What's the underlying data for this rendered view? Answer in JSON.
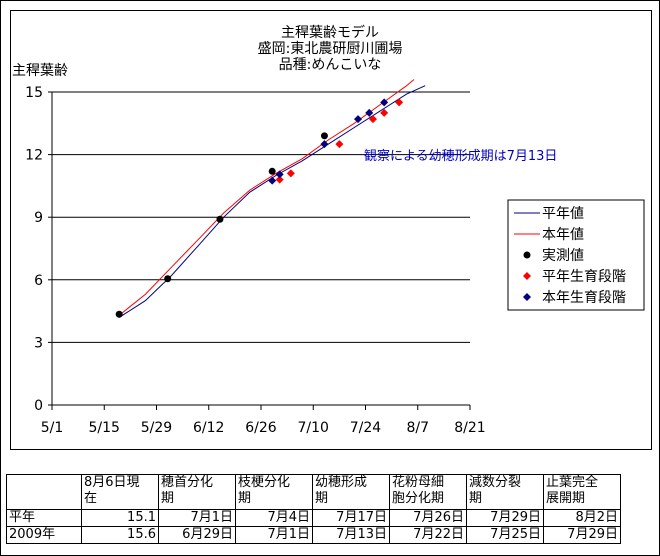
{
  "chart_data": {
    "type": "line",
    "title": [
      "主稈葉齢モデル",
      "盛岡:東北農研厨川圃場",
      "品種:めんこいな"
    ],
    "ylabel": "主稈葉齢",
    "xlabel": "",
    "ylim": [
      0,
      15
    ],
    "yticks": [
      0,
      3,
      6,
      9,
      12,
      15
    ],
    "xlim": [
      "5/1",
      "8/21"
    ],
    "xticks": [
      "5/1",
      "5/15",
      "5/29",
      "6/12",
      "6/26",
      "7/10",
      "7/24",
      "8/7",
      "8/21"
    ],
    "grid": "horizontal",
    "legend_position": "right",
    "annotation": "観察による幼穂形成期は7月13日",
    "series": [
      {
        "name": "平年値",
        "kind": "line",
        "color": "#000080",
        "x": [
          "5/19",
          "5/26",
          "6/2",
          "6/9",
          "6/16",
          "6/23",
          "6/30",
          "7/7",
          "7/14",
          "7/21",
          "7/28",
          "8/4",
          "8/9"
        ],
        "values": [
          4.2,
          5.0,
          6.2,
          7.6,
          9.0,
          10.2,
          11.0,
          11.7,
          12.5,
          13.3,
          14.1,
          14.9,
          15.3
        ]
      },
      {
        "name": "本年値",
        "kind": "line",
        "color": "#ff0000",
        "x": [
          "5/19",
          "5/26",
          "6/2",
          "6/9",
          "6/16",
          "6/23",
          "6/30",
          "7/7",
          "7/14",
          "7/21",
          "7/28",
          "8/4",
          "8/6"
        ],
        "values": [
          4.3,
          5.3,
          6.6,
          7.9,
          9.2,
          10.3,
          11.1,
          11.8,
          12.7,
          13.5,
          14.4,
          15.3,
          15.6
        ]
      },
      {
        "name": "実測値",
        "kind": "point",
        "color": "#000000",
        "marker": "circle",
        "x": [
          "5/19",
          "6/1",
          "6/15",
          "6/29",
          "7/13"
        ],
        "values": [
          4.35,
          6.05,
          8.9,
          11.2,
          12.9
        ]
      },
      {
        "name": "平年生育段階",
        "kind": "point",
        "color": "#ff0000",
        "marker": "diamond",
        "x": [
          "7/1",
          "7/4",
          "7/17",
          "7/26",
          "7/29",
          "8/2"
        ],
        "values": [
          10.8,
          11.1,
          12.5,
          13.7,
          14.0,
          14.5
        ]
      },
      {
        "name": "本年生育段階",
        "kind": "point",
        "color": "#000080",
        "marker": "diamond",
        "x": [
          "6/29",
          "7/1",
          "7/13",
          "7/22",
          "7/25",
          "7/29"
        ],
        "values": [
          10.75,
          11.05,
          12.5,
          13.7,
          14.0,
          14.5
        ]
      }
    ]
  },
  "table": {
    "headers": [
      "",
      [
        "8月6日現",
        "在"
      ],
      [
        "穂首分化",
        "期"
      ],
      [
        "枝梗分化",
        "期"
      ],
      [
        "幼穂形成",
        "期"
      ],
      [
        "花粉母細",
        "胞分化期"
      ],
      [
        "減数分裂",
        "期"
      ],
      [
        "止葉完全",
        "展開期"
      ]
    ],
    "rows": [
      [
        "平年",
        "15.1",
        "7月1日",
        "7月4日",
        "7月17日",
        "7月26日",
        "7月29日",
        "8月2日"
      ],
      [
        "2009年",
        "15.6",
        "6月29日",
        "7月1日",
        "7月13日",
        "7月22日",
        "7月25日",
        "7月29日"
      ]
    ]
  }
}
